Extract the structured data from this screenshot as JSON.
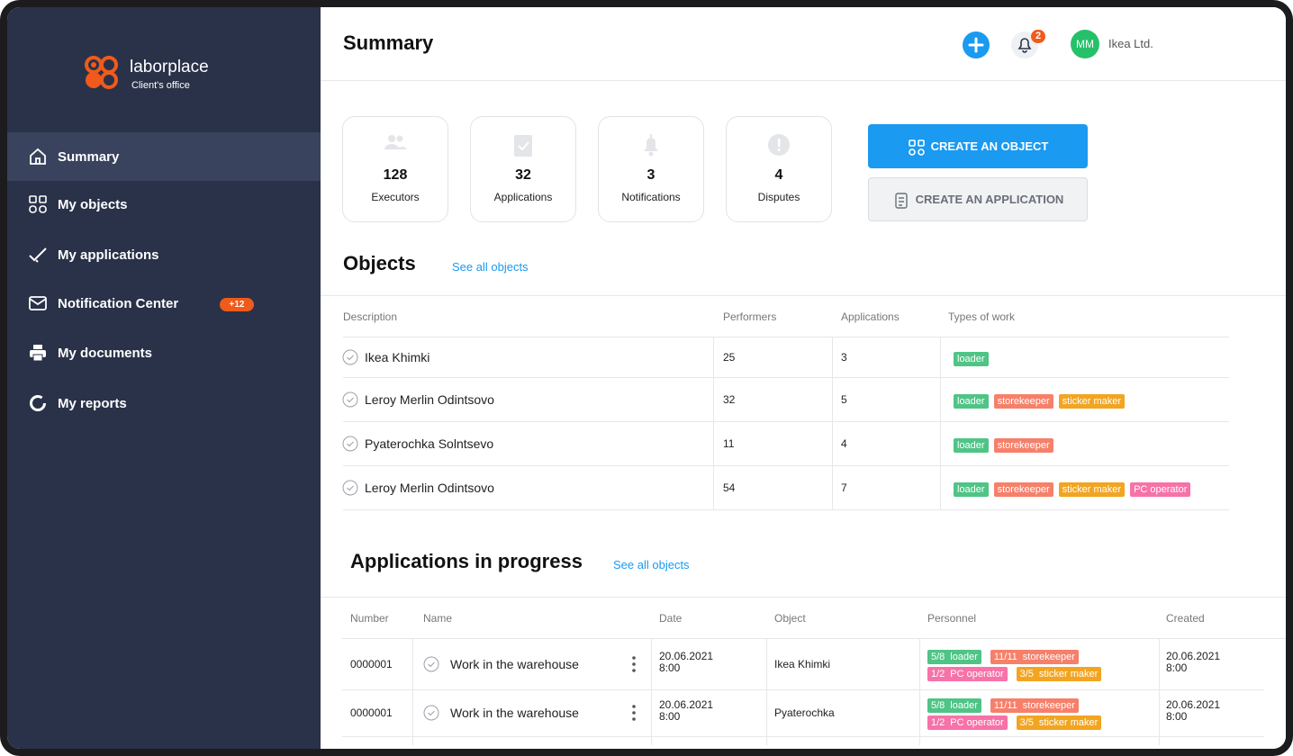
{
  "brand": {
    "name": "laborplace",
    "subtitle": "Client's office"
  },
  "nav": [
    {
      "label": "Summary",
      "active": true
    },
    {
      "label": "My objects"
    },
    {
      "label": "My applications"
    },
    {
      "label": "Notification Center",
      "badge": "+12"
    },
    {
      "label": "My documents"
    },
    {
      "label": "My reports"
    }
  ],
  "header": {
    "title": "Summary",
    "notifications": 2,
    "avatar": "MM",
    "company": "Ikea Ltd."
  },
  "stats": [
    {
      "value": 128,
      "label": "Executors"
    },
    {
      "value": 32,
      "label": "Applications"
    },
    {
      "value": 3,
      "label": "Notifications"
    },
    {
      "value": 4,
      "label": "Disputes"
    }
  ],
  "actions": [
    "CREATE AN OBJECT",
    "CREATE AN APPLICATION"
  ],
  "objects": {
    "title": "Objects",
    "link": "See all objects",
    "columns": [
      "Description",
      "Performers",
      "Applications",
      "Types of work"
    ],
    "rows": [
      {
        "description": "Ikea Khimki",
        "performers": 25,
        "applications": 3,
        "types": [
          {
            "name": "loader",
            "color": "#4fc486"
          }
        ]
      },
      {
        "description": "Leroy Merlin Odintsovo",
        "performers": 32,
        "applications": 5,
        "types": [
          {
            "name": "loader",
            "color": "#4fc486"
          },
          {
            "name": "storekeeper",
            "color": "#f6806a"
          },
          {
            "name": "sticker maker",
            "color": "#f2a521"
          }
        ]
      },
      {
        "description": "Pyaterochka Solntsevo",
        "performers": 11,
        "applications": 4,
        "types": [
          {
            "name": "loader",
            "color": "#4fc486"
          },
          {
            "name": "storekeeper",
            "color": "#f6806a"
          }
        ]
      },
      {
        "description": "Leroy Merlin Odintsovo",
        "performers": 54,
        "applications": 7,
        "types": [
          {
            "name": "loader",
            "color": "#4fc486"
          },
          {
            "name": "storekeeper",
            "color": "#f6806a"
          },
          {
            "name": "sticker maker",
            "color": "#f2a521"
          },
          {
            "name": "PC operator",
            "color": "#f772a8"
          }
        ]
      }
    ]
  },
  "applications": {
    "title": "Applications in progress",
    "link": "See all objects",
    "columns": [
      "Number",
      "Name",
      "Date",
      "Object",
      "Personnel",
      "Created"
    ],
    "rows": [
      {
        "number": "0000001",
        "name": "Work in the warehouse",
        "date": "20.06.2021 8:00",
        "object": "Ikea Khimki",
        "personnel": [
          {
            "count": "5/8",
            "role": "loader",
            "color": "#4fc486"
          },
          {
            "count": "11/11",
            "role": "storekeeper",
            "color": "#f6806a"
          },
          {
            "count": "1/2",
            "role": "PC operator",
            "color": "#f772a8"
          },
          {
            "count": "3/5",
            "role": "sticker maker",
            "color": "#f2a521"
          }
        ],
        "created": "20.06.2021 8:00"
      },
      {
        "number": "0000001",
        "name": "Work in the warehouse",
        "date": "20.06.2021 8:00",
        "object": "Pyaterochka",
        "personnel": [
          {
            "count": "5/8",
            "role": "loader",
            "color": "#4fc486"
          },
          {
            "count": "11/11",
            "role": "storekeeper",
            "color": "#f6806a"
          },
          {
            "count": "1/2",
            "role": "PC operator",
            "color": "#f772a8"
          },
          {
            "count": "3/5",
            "role": "sticker maker",
            "color": "#f2a521"
          }
        ],
        "created": "20.06.2021 8:00"
      }
    ]
  }
}
